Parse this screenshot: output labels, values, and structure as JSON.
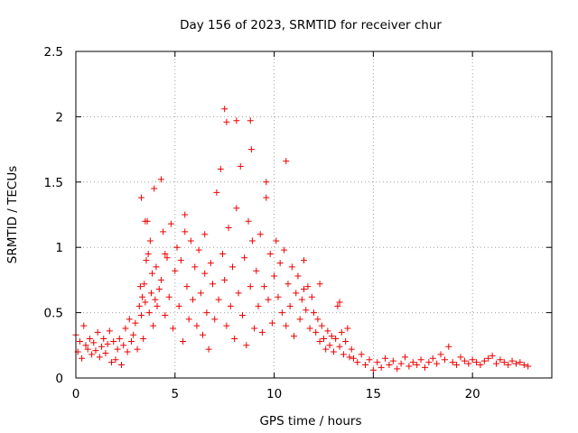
{
  "chart_data": {
    "type": "scatter",
    "title": "Day 156 of 2023, SRMTID for receiver chur",
    "xlabel": "GPS time / hours",
    "ylabel": "SRMTID / TECUs",
    "xlim": [
      0,
      24
    ],
    "ylim": [
      0,
      2.5
    ],
    "xticks": [
      0,
      5,
      10,
      15,
      20
    ],
    "yticks": [
      0,
      0.5,
      1,
      1.5,
      2,
      2.5
    ],
    "xtick_labels": [
      "0",
      "5",
      "10",
      "15",
      "20"
    ],
    "ytick_labels": [
      "0",
      "0.5",
      "1",
      "1.5",
      "2",
      "2.5"
    ],
    "grid": true,
    "marker": "plus",
    "series": [
      {
        "name": "SRMTID",
        "color": "#ee0000",
        "x": [
          0.0,
          0.1,
          0.2,
          0.3,
          0.4,
          0.5,
          0.6,
          0.7,
          0.8,
          0.9,
          1.0,
          1.1,
          1.2,
          1.3,
          1.4,
          1.5,
          1.6,
          1.7,
          1.8,
          1.9,
          2.0,
          2.1,
          2.2,
          2.3,
          2.4,
          2.5,
          2.6,
          2.7,
          2.8,
          2.9,
          3.0,
          3.1,
          3.2,
          3.25,
          3.3,
          3.35,
          3.4,
          3.45,
          3.5,
          3.55,
          3.6,
          3.65,
          3.7,
          3.75,
          3.8,
          3.85,
          3.9,
          3.95,
          4.0,
          4.05,
          4.1,
          4.2,
          4.3,
          4.4,
          4.5,
          4.6,
          4.7,
          4.8,
          4.9,
          5.0,
          5.1,
          5.2,
          5.3,
          5.4,
          5.5,
          5.6,
          5.7,
          5.8,
          5.9,
          6.0,
          6.1,
          6.2,
          6.3,
          6.4,
          6.5,
          6.6,
          6.7,
          6.8,
          6.9,
          7.0,
          7.1,
          7.2,
          7.3,
          7.4,
          7.5,
          7.6,
          7.7,
          7.8,
          7.9,
          8.0,
          8.1,
          8.2,
          8.3,
          8.4,
          8.5,
          8.6,
          8.7,
          8.8,
          8.9,
          9.0,
          9.1,
          9.2,
          9.3,
          9.4,
          9.5,
          9.6,
          9.7,
          9.8,
          9.9,
          10.0,
          10.1,
          10.2,
          10.3,
          10.4,
          10.5,
          10.6,
          10.7,
          10.8,
          10.9,
          11.0,
          11.1,
          11.2,
          11.3,
          11.4,
          11.5,
          11.6,
          11.7,
          11.8,
          11.9,
          12.0,
          12.1,
          12.2,
          12.3,
          12.4,
          12.5,
          12.6,
          12.7,
          12.8,
          12.9,
          13.0,
          13.1,
          13.2,
          13.3,
          13.4,
          13.5,
          13.6,
          13.7,
          13.8,
          13.9,
          14.0,
          14.2,
          14.4,
          14.6,
          14.8,
          15.0,
          15.2,
          15.4,
          15.6,
          15.8,
          16.0,
          16.2,
          16.4,
          16.6,
          16.8,
          17.0,
          17.2,
          17.4,
          17.6,
          17.8,
          18.0,
          18.2,
          18.4,
          18.6,
          18.8,
          19.0,
          19.2,
          19.4,
          19.6,
          19.8,
          20.0,
          20.2,
          20.4,
          20.6,
          20.8,
          21.0,
          21.2,
          21.4,
          21.6,
          21.8,
          22.0,
          22.2,
          22.4,
          22.6,
          22.8,
          3.3,
          3.5,
          4.5,
          5.5,
          6.5,
          7.5,
          7.6,
          8.1,
          8.8,
          8.85,
          9.6,
          10.6,
          11.5,
          12.3,
          13.3,
          4.3
        ],
        "y": [
          0.33,
          0.2,
          0.28,
          0.15,
          0.4,
          0.25,
          0.22,
          0.3,
          0.18,
          0.27,
          0.21,
          0.35,
          0.16,
          0.24,
          0.3,
          0.19,
          0.26,
          0.36,
          0.12,
          0.28,
          0.14,
          0.22,
          0.3,
          0.1,
          0.25,
          0.38,
          0.2,
          0.45,
          0.28,
          0.33,
          0.42,
          0.22,
          0.55,
          0.7,
          0.48,
          0.62,
          0.3,
          0.72,
          0.58,
          0.9,
          1.2,
          0.95,
          0.5,
          1.05,
          0.65,
          0.8,
          0.4,
          1.45,
          0.6,
          0.85,
          0.55,
          0.68,
          0.75,
          1.12,
          0.48,
          0.92,
          0.62,
          1.18,
          0.38,
          0.82,
          1.0,
          0.55,
          0.9,
          0.28,
          1.25,
          0.7,
          0.45,
          1.05,
          0.6,
          0.85,
          0.4,
          0.98,
          0.65,
          0.33,
          1.1,
          0.5,
          0.22,
          0.88,
          0.72,
          0.45,
          1.42,
          0.6,
          1.6,
          0.95,
          0.75,
          0.4,
          1.15,
          0.55,
          0.85,
          0.3,
          1.3,
          0.65,
          1.62,
          0.48,
          0.92,
          0.25,
          1.2,
          0.7,
          1.05,
          0.38,
          0.82,
          0.55,
          1.1,
          0.35,
          0.7,
          1.38,
          0.6,
          0.95,
          0.42,
          0.78,
          1.05,
          0.62,
          0.88,
          0.5,
          0.98,
          0.4,
          0.72,
          0.55,
          0.85,
          0.32,
          0.65,
          0.78,
          0.45,
          0.6,
          0.9,
          0.52,
          0.7,
          0.38,
          0.62,
          0.5,
          0.35,
          0.45,
          0.28,
          0.4,
          0.3,
          0.22,
          0.36,
          0.25,
          0.32,
          0.2,
          0.3,
          0.55,
          0.24,
          0.35,
          0.18,
          0.28,
          0.38,
          0.16,
          0.22,
          0.15,
          0.12,
          0.18,
          0.1,
          0.14,
          0.06,
          0.12,
          0.08,
          0.15,
          0.1,
          0.13,
          0.07,
          0.11,
          0.16,
          0.09,
          0.12,
          0.1,
          0.14,
          0.08,
          0.12,
          0.15,
          0.11,
          0.18,
          0.14,
          0.24,
          0.12,
          0.1,
          0.16,
          0.13,
          0.11,
          0.14,
          0.12,
          0.1,
          0.13,
          0.15,
          0.17,
          0.11,
          0.14,
          0.12,
          0.1,
          0.13,
          0.11,
          0.12,
          0.1,
          0.09,
          1.38,
          1.2,
          0.95,
          1.12,
          0.8,
          2.06,
          1.96,
          1.97,
          1.97,
          1.75,
          1.5,
          1.66,
          0.68,
          0.72,
          0.58,
          1.52
        ]
      }
    ]
  }
}
